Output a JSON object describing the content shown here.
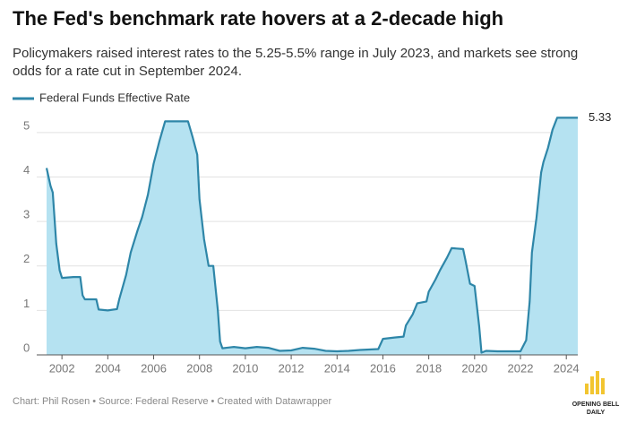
{
  "chart_data": {
    "type": "area",
    "title": "The Fed's benchmark rate hovers at a 2-decade high",
    "subtitle": [
      "Policymakers raised interest rates to the 5.25-5.5% range in July 2023, and markets see strong",
      "odds for a rate cut in September 2024."
    ],
    "x": [
      2001.33,
      2001.5,
      2001.6,
      2001.75,
      2001.9,
      2002.0,
      2002.5,
      2002.8,
      2002.9,
      2003.0,
      2003.5,
      2003.6,
      2004.0,
      2004.4,
      2004.5,
      2004.8,
      2005.0,
      2005.3,
      2005.5,
      2005.75,
      2006.0,
      2006.25,
      2006.5,
      2007.5,
      2007.7,
      2007.9,
      2008.0,
      2008.2,
      2008.4,
      2008.6,
      2008.8,
      2008.9,
      2009.0,
      2009.5,
      2010.0,
      2010.5,
      2011.0,
      2011.5,
      2012.0,
      2012.5,
      2013.0,
      2013.5,
      2014.0,
      2014.5,
      2015.0,
      2015.8,
      2016.0,
      2016.5,
      2016.9,
      2017.0,
      2017.3,
      2017.5,
      2017.9,
      2018.0,
      2018.3,
      2018.5,
      2018.8,
      2019.0,
      2019.5,
      2019.6,
      2019.8,
      2020.0,
      2020.2,
      2020.3,
      2020.5,
      2021.0,
      2021.5,
      2022.0,
      2022.25,
      2022.4,
      2022.5,
      2022.7,
      2022.9,
      2023.0,
      2023.2,
      2023.4,
      2023.6,
      2024.5
    ],
    "series": [
      {
        "name": "Federal Funds Effective Rate",
        "color": "#2e86a8",
        "values": [
          4.2,
          3.8,
          3.65,
          2.5,
          1.9,
          1.73,
          1.75,
          1.75,
          1.34,
          1.25,
          1.25,
          1.02,
          1.0,
          1.03,
          1.25,
          1.8,
          2.3,
          2.8,
          3.1,
          3.6,
          4.3,
          4.8,
          5.25,
          5.25,
          4.9,
          4.5,
          3.5,
          2.6,
          2.0,
          2.0,
          1.0,
          0.3,
          0.15,
          0.18,
          0.15,
          0.18,
          0.16,
          0.09,
          0.1,
          0.16,
          0.14,
          0.09,
          0.08,
          0.09,
          0.11,
          0.13,
          0.36,
          0.39,
          0.41,
          0.66,
          0.91,
          1.16,
          1.2,
          1.42,
          1.7,
          1.91,
          2.19,
          2.4,
          2.38,
          2.13,
          1.6,
          1.55,
          0.65,
          0.05,
          0.09,
          0.08,
          0.08,
          0.08,
          0.33,
          1.2,
          2.3,
          3.08,
          4.1,
          4.33,
          4.65,
          5.06,
          5.33,
          5.33
        ]
      }
    ],
    "fill_color": "#b5e2f1",
    "end_label": "5.33",
    "xlim": [
      2000.9,
      2024.5
    ],
    "xticks": [
      2002,
      2004,
      2006,
      2008,
      2010,
      2012,
      2014,
      2016,
      2018,
      2020,
      2022,
      2024
    ],
    "ylim": [
      0,
      5.5
    ],
    "yticks": [
      0,
      1,
      2,
      3,
      4,
      5
    ],
    "grid": true,
    "source": "Chart: Phil Rosen • Source: Federal Reserve • Created with Datawrapper",
    "logo": [
      "OPENING BELL",
      "DAILY"
    ]
  }
}
